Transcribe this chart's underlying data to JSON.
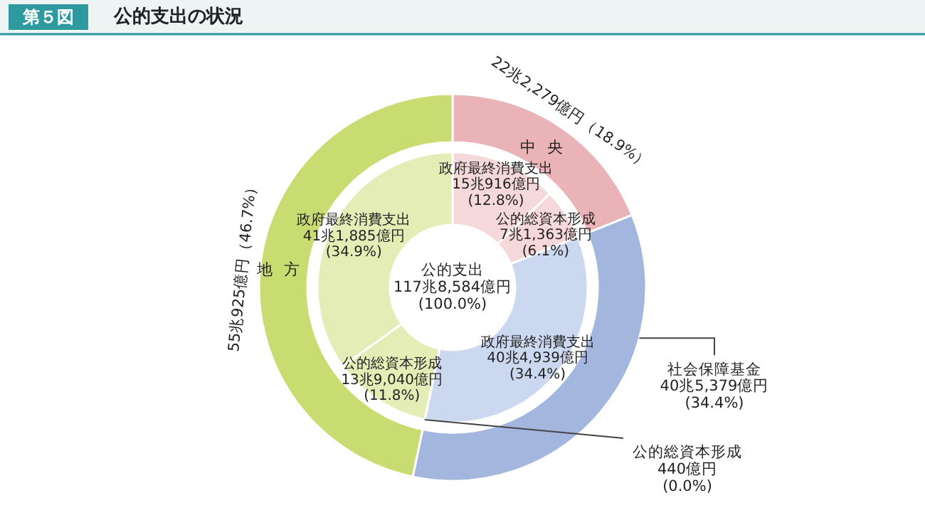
{
  "chart_data": [
    {
      "type": "donut",
      "title": "公的支出の状況",
      "subtitle": "第５図",
      "annotations": [
        "公的支出\n117兆8,584億円\n(100.0%)"
      ],
      "categories": [
        "中央",
        "社会保障基金",
        "地方"
      ],
      "values": [
        18.9,
        34.4,
        46.7
      ],
      "colors": [
        "#e9b3b8",
        "#a3b6de",
        "#c9dc72"
      ],
      "value_labels": [
        "22兆2,279億円（18.9%）",
        "40兆5,379億円\n(34.4%)",
        "55兆925億円（46.7%）"
      ]
    },
    {
      "type": "donut",
      "categories": [
        "政府最終消費支出",
        "公的総資本形成",
        "政府最終消費支出",
        "公的総資本形成",
        "公的総資本形成",
        "政府最終消費支出"
      ],
      "values": [
        12.8,
        6.1,
        34.4,
        0.0,
        11.8,
        34.9
      ],
      "colors": [
        "#f5d8da",
        "#f5d8da",
        "#ccd8ef",
        "#ccd8ef",
        "#e5edb6",
        "#e5edb6"
      ],
      "value_labels": [
        "15兆916億円\n(12.8%)",
        "7兆1,363億円\n(6.1%)",
        "40兆4,939億円\n(34.4%)",
        "440億円\n(0.0%)",
        "13兆9,040億円\n(11.8%)",
        "41兆1,885億円\n(34.9%)"
      ]
    }
  ]
}
